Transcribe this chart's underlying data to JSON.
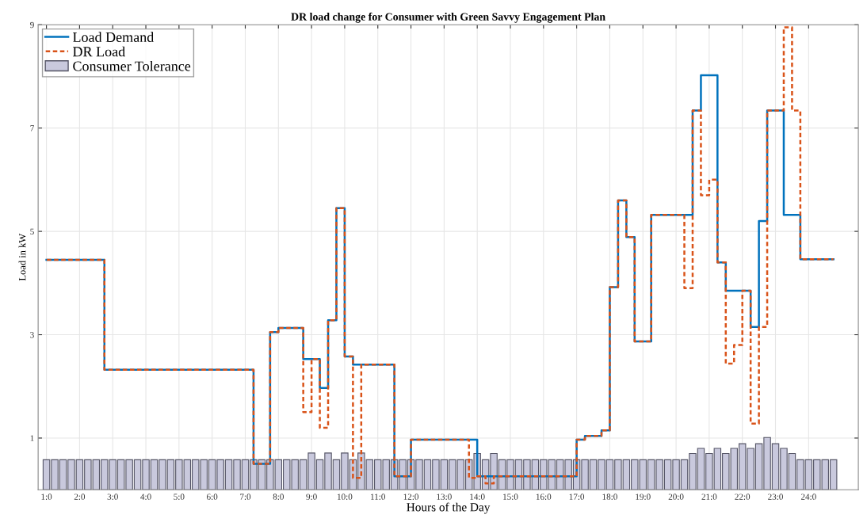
{
  "chart_data": {
    "type": "step",
    "title": "DR load change for Consumer with Green Savvy Engagement Plan",
    "xlabel": "Hours of the Day",
    "ylabel": "Load in kW",
    "categories": [
      "1:0",
      null,
      null,
      null,
      "2:0",
      null,
      null,
      null,
      "3:0",
      null,
      null,
      null,
      "4:0",
      null,
      null,
      null,
      "5:0",
      null,
      null,
      null,
      "6:0",
      null,
      null,
      null,
      "7:0",
      null,
      null,
      null,
      "8:0",
      null,
      null,
      null,
      "9:0",
      null,
      null,
      null,
      "10:0",
      null,
      null,
      null,
      "11:0",
      null,
      null,
      null,
      "12:0",
      null,
      null,
      null,
      "13:0",
      null,
      null,
      null,
      "14:0",
      null,
      null,
      null,
      "15:0",
      null,
      null,
      null,
      "16:0",
      null,
      null,
      null,
      "17:0",
      null,
      null,
      null,
      "18:0",
      null,
      null,
      null,
      "19:0",
      null,
      null,
      null,
      "20:0",
      null,
      null,
      null,
      "21:0",
      null,
      null,
      null,
      "22:0",
      null,
      null,
      null,
      "23:0",
      null,
      null,
      null,
      "24:0",
      null,
      null,
      null
    ],
    "series": [
      {
        "name": "Consumer Tolerance",
        "type": "bar",
        "color": "#c9c9dd",
        "values": [
          0.58,
          0.58,
          0.58,
          0.58,
          0.58,
          0.58,
          0.58,
          0.58,
          0.58,
          0.58,
          0.58,
          0.58,
          0.58,
          0.58,
          0.58,
          0.58,
          0.58,
          0.58,
          0.58,
          0.58,
          0.58,
          0.58,
          0.58,
          0.58,
          0.58,
          0.58,
          0.58,
          0.58,
          0.58,
          0.58,
          0.58,
          0.58,
          0.71,
          0.58,
          0.71,
          0.58,
          0.71,
          0.58,
          0.71,
          0.58,
          0.58,
          0.58,
          0.58,
          0.58,
          0.58,
          0.58,
          0.58,
          0.58,
          0.58,
          0.58,
          0.58,
          0.58,
          0.7,
          0.58,
          0.7,
          0.58,
          0.58,
          0.58,
          0.58,
          0.58,
          0.58,
          0.58,
          0.58,
          0.58,
          0.58,
          0.58,
          0.58,
          0.58,
          0.58,
          0.58,
          0.58,
          0.58,
          0.58,
          0.58,
          0.58,
          0.58,
          0.58,
          0.58,
          0.7,
          0.8,
          0.7,
          0.8,
          0.7,
          0.8,
          0.89,
          0.8,
          0.89,
          1.01,
          0.89,
          0.8,
          0.7,
          0.58,
          0.58,
          0.58,
          0.58,
          0.58
        ]
      },
      {
        "name": "Load Demand",
        "color": "#0072bd",
        "line_style": "solid",
        "values": [
          4.45,
          4.45,
          4.45,
          4.45,
          4.45,
          4.45,
          4.45,
          2.32,
          2.32,
          2.32,
          2.32,
          2.32,
          2.32,
          2.32,
          2.32,
          2.32,
          2.32,
          2.32,
          2.32,
          2.32,
          2.32,
          2.32,
          2.32,
          2.32,
          2.32,
          0.5,
          0.5,
          3.05,
          3.13,
          3.13,
          3.13,
          2.53,
          2.53,
          1.97,
          3.28,
          5.45,
          2.58,
          2.42,
          2.42,
          2.42,
          2.42,
          2.42,
          0.26,
          0.26,
          0.97,
          0.97,
          0.97,
          0.97,
          0.97,
          0.97,
          0.97,
          0.97,
          0.26,
          0.26,
          0.26,
          0.26,
          0.26,
          0.26,
          0.26,
          0.26,
          0.26,
          0.26,
          0.26,
          0.26,
          0.97,
          1.04,
          1.04,
          1.15,
          3.92,
          5.6,
          4.89,
          2.87,
          2.87,
          5.32,
          5.32,
          5.32,
          5.32,
          5.32,
          7.34,
          8.02,
          8.02,
          4.4,
          3.85,
          3.85,
          3.85,
          3.15,
          5.2,
          7.34,
          7.34,
          5.32,
          5.32,
          4.46,
          4.46,
          4.46,
          4.46,
          4.46
        ]
      },
      {
        "name": "DR Load",
        "color": "#d95319",
        "line_style": "dashed",
        "values": [
          4.45,
          4.45,
          4.45,
          4.45,
          4.45,
          4.45,
          4.45,
          2.32,
          2.32,
          2.32,
          2.32,
          2.32,
          2.32,
          2.32,
          2.32,
          2.32,
          2.32,
          2.32,
          2.32,
          2.32,
          2.32,
          2.32,
          2.32,
          2.32,
          2.32,
          0.5,
          0.5,
          3.05,
          3.13,
          3.13,
          3.13,
          1.5,
          2.53,
          1.2,
          3.28,
          5.45,
          2.58,
          0.23,
          2.42,
          2.42,
          2.42,
          2.42,
          0.26,
          0.26,
          0.97,
          0.97,
          0.97,
          0.97,
          0.97,
          0.97,
          0.97,
          0.23,
          0.26,
          0.12,
          0.26,
          0.26,
          0.26,
          0.26,
          0.26,
          0.26,
          0.26,
          0.26,
          0.26,
          0.26,
          0.97,
          1.04,
          1.04,
          1.15,
          3.92,
          5.6,
          4.89,
          2.87,
          2.87,
          5.32,
          5.32,
          5.32,
          5.32,
          3.9,
          7.34,
          5.7,
          6.0,
          4.4,
          2.44,
          2.8,
          3.85,
          1.28,
          3.15,
          7.34,
          7.34,
          8.95,
          7.34,
          4.46,
          4.46,
          4.46,
          4.46,
          4.46
        ]
      }
    ],
    "ylim": [
      0,
      9
    ],
    "yticks": [
      1,
      3,
      5,
      7,
      9
    ],
    "grid": true,
    "legend": "top left"
  }
}
